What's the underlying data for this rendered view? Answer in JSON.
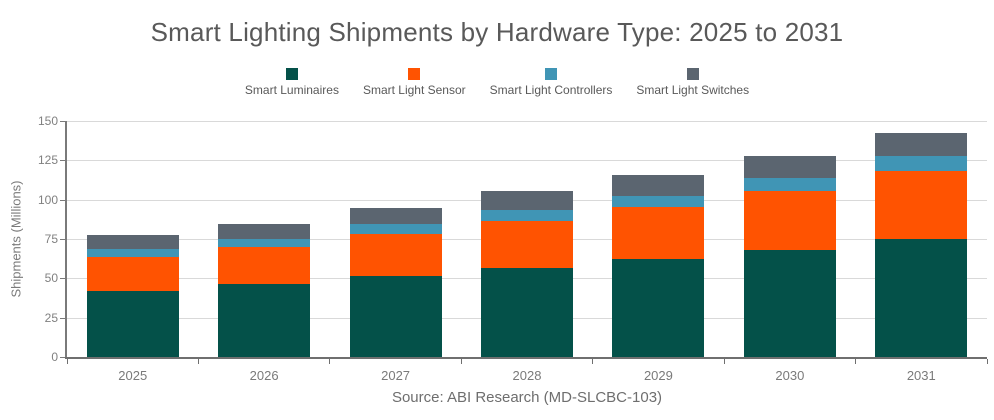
{
  "chart_data": {
    "type": "bar",
    "stacked": true,
    "title": "Smart Lighting Shipments by Hardware Type: 2025 to 2031",
    "ylabel": "Shipments (Millions)",
    "xlabel": "",
    "source": "Source: ABI Research (MD-SLCBC-103)",
    "categories": [
      "2025",
      "2026",
      "2027",
      "2028",
      "2029",
      "2030",
      "2031"
    ],
    "series": [
      {
        "name": "Smart Luminaires",
        "color": "#045149",
        "values": [
          42,
          46.5,
          51.5,
          56.5,
          62.5,
          68,
          75
        ]
      },
      {
        "name": "Smart Light Sensor",
        "color": "#ff5301",
        "values": [
          21.5,
          23.5,
          27,
          30,
          33,
          37.5,
          43.5
        ]
      },
      {
        "name": "Smart Light Controllers",
        "color": "#4095b5",
        "values": [
          5,
          5,
          6,
          7,
          7,
          8,
          9
        ]
      },
      {
        "name": "Smart Light Switches",
        "color": "#5b6570",
        "values": [
          9,
          9.5,
          10.5,
          12,
          13.5,
          14,
          15
        ]
      }
    ],
    "totals": [
      77.5,
      84.5,
      95,
      105.5,
      116,
      127.5,
      142.5
    ],
    "ylim": [
      0,
      150
    ],
    "yticks": [
      0,
      25,
      50,
      75,
      100,
      125,
      150
    ],
    "grid": true,
    "legend_position": "top"
  },
  "colors": {
    "background": "#ffffff",
    "title_text": "#595959",
    "legend_text": "#595959",
    "axis_text": "#808080",
    "axis_line": "#7a7a7a",
    "gridline": "#d9d9d9",
    "source_text": "#6e6e6e"
  }
}
